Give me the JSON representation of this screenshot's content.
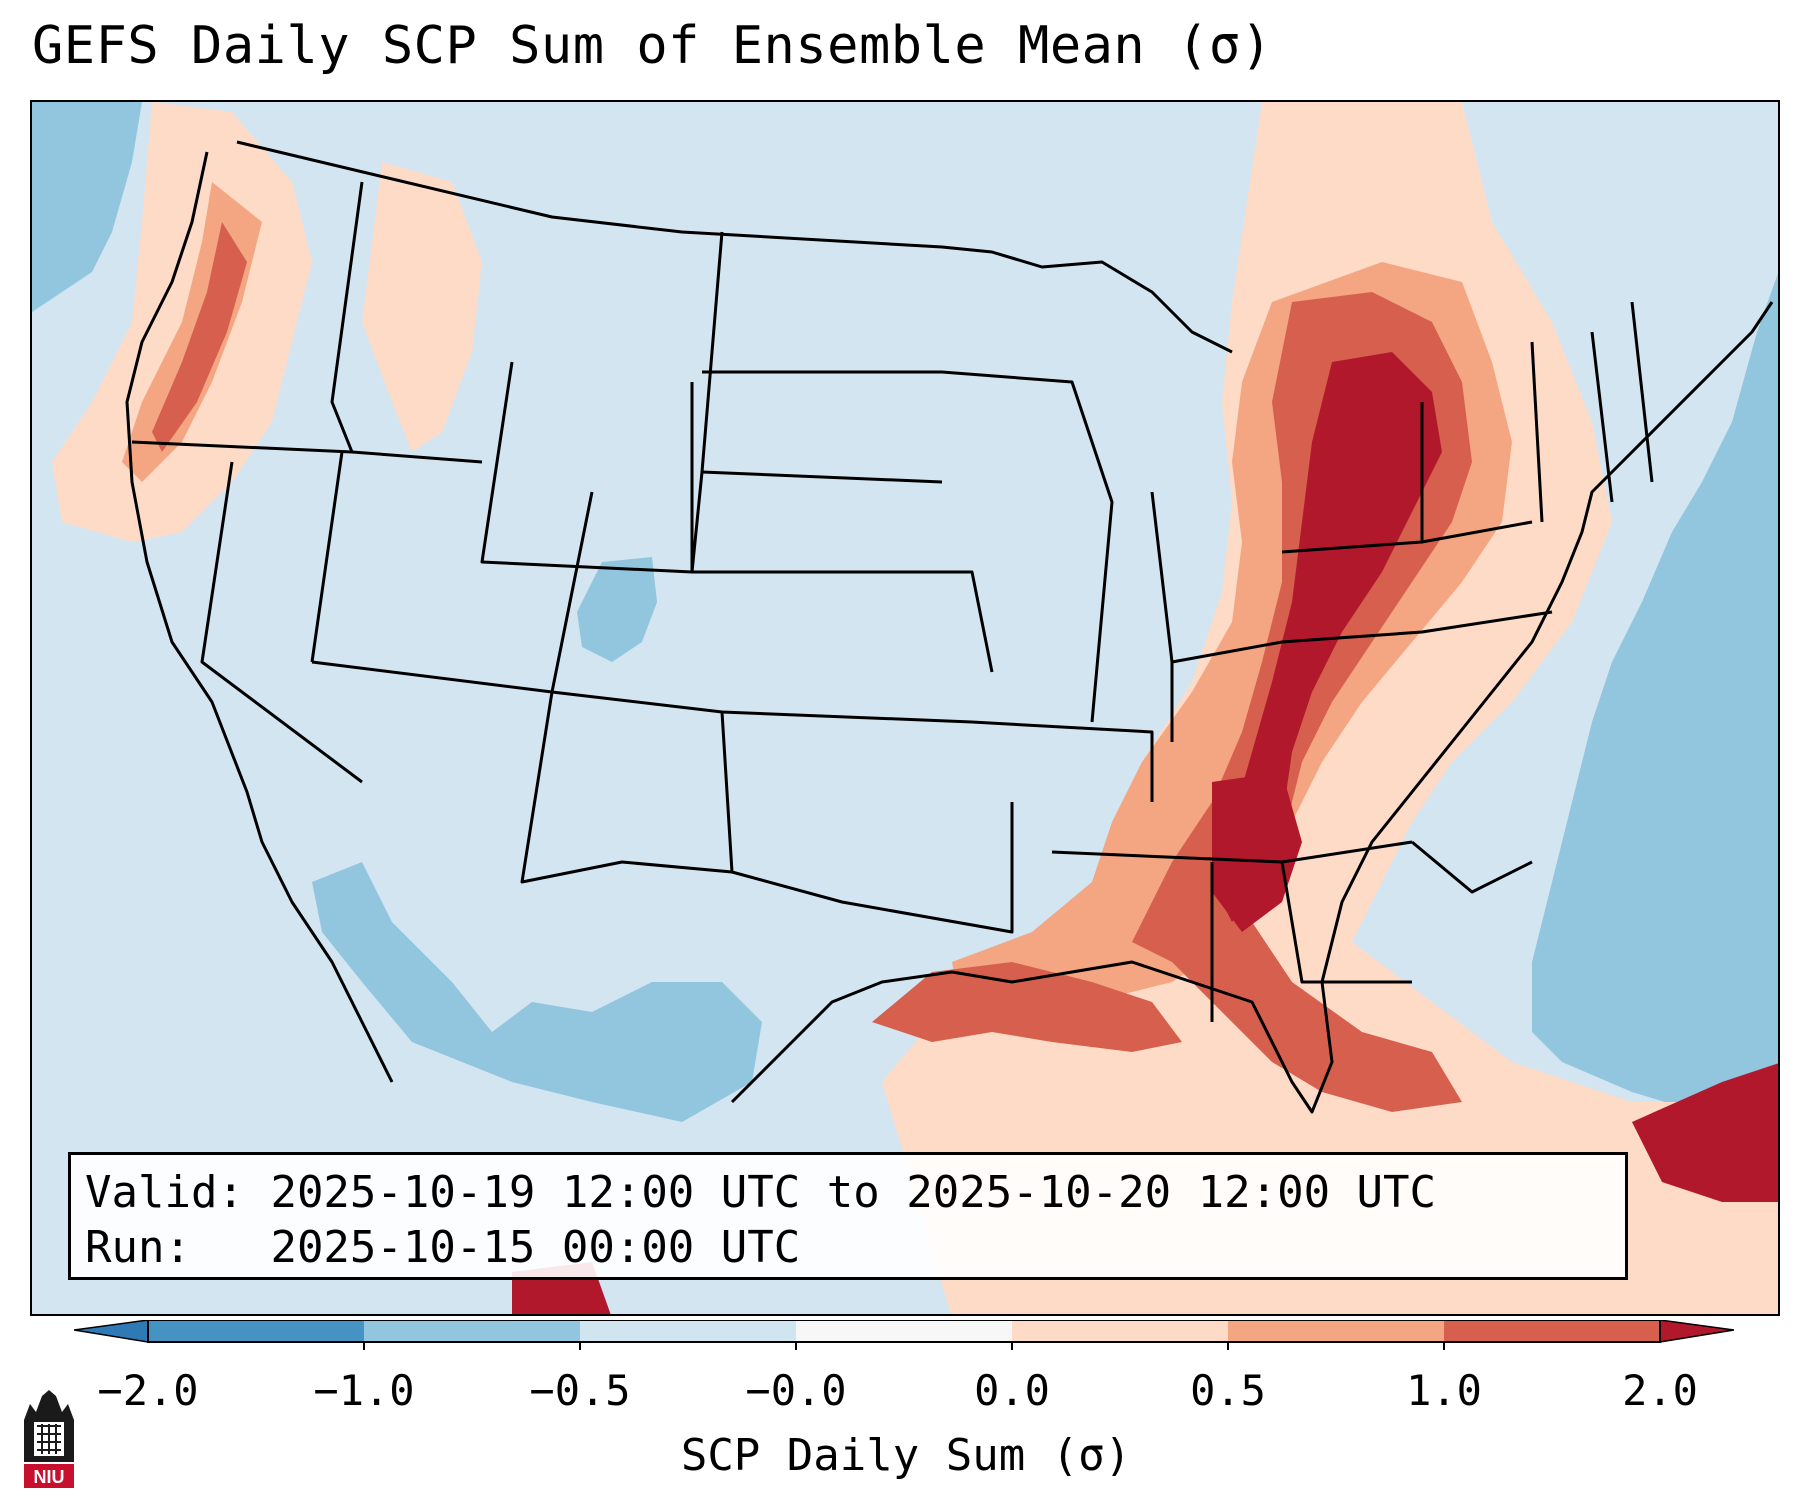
{
  "title": "GEFS Daily SCP Sum of Ensemble Mean (σ)",
  "info": {
    "valid_label": "Valid:",
    "valid_value": "2025-10-19 12:00 UTC to 2025-10-20 12:00 UTC",
    "run_label": "Run:",
    "run_value": "2025-10-15 00:00 UTC"
  },
  "colorbar": {
    "label": "SCP Daily Sum (σ)",
    "ticks": [
      "−2.0",
      "−1.0",
      "−0.5",
      "−0.0",
      "0.0",
      "0.5",
      "1.0",
      "2.0"
    ],
    "colors": {
      "below_min": "#2f79b5",
      "bins": [
        "#4692c2",
        "#92c5de",
        "#d1e5f0",
        "#f7f7f7",
        "#fddbc7",
        "#f4a582",
        "#d6604d"
      ],
      "above_max": "#b2182b"
    }
  },
  "field_colors": {
    "ocean_neutral": "#d2e5f0",
    "neg_low": "#92c5de",
    "pos_low": "#fddbc7",
    "pos_mid": "#f4a582",
    "pos_high": "#d6604d",
    "pos_max": "#b2182b"
  },
  "logo": {
    "text": "NIU",
    "icon": "niu-university-logo"
  }
}
